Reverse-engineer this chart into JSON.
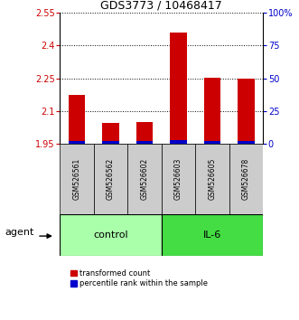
{
  "title": "GDS3773 / 10468417",
  "samples": [
    "GSM526561",
    "GSM526562",
    "GSM526602",
    "GSM526603",
    "GSM526605",
    "GSM526678"
  ],
  "red_values": [
    2.175,
    2.045,
    2.05,
    2.46,
    2.255,
    2.25
  ],
  "blue_values": [
    1.965,
    1.962,
    1.963,
    1.968,
    1.965,
    1.963
  ],
  "ylim_left": [
    1.95,
    2.55
  ],
  "ylim_right": [
    0,
    100
  ],
  "yticks_left": [
    1.95,
    2.1,
    2.25,
    2.4,
    2.55
  ],
  "yticks_right": [
    0,
    25,
    50,
    75,
    100
  ],
  "ytick_labels_left": [
    "1.95",
    "2.1",
    "2.25",
    "2.4",
    "2.55"
  ],
  "ytick_labels_right": [
    "0",
    "25",
    "50",
    "75",
    "100%"
  ],
  "groups": [
    {
      "label": "control",
      "samples": [
        0,
        1,
        2
      ],
      "color": "#aaffaa"
    },
    {
      "label": "IL-6",
      "samples": [
        3,
        4,
        5
      ],
      "color": "#44dd44"
    }
  ],
  "agent_label": "agent",
  "bar_width": 0.5,
  "red_color": "#cc0000",
  "blue_color": "#0000cc",
  "grid_color": "#000000",
  "label_color_left": "#cc0000",
  "label_color_right": "#0000cc",
  "legend_red": "transformed count",
  "legend_blue": "percentile rank within the sample",
  "sample_box_color": "#cccccc",
  "title_fontsize": 9,
  "tick_fontsize": 7,
  "sample_fontsize": 5.5,
  "group_fontsize": 8,
  "legend_fontsize": 6,
  "agent_fontsize": 8
}
